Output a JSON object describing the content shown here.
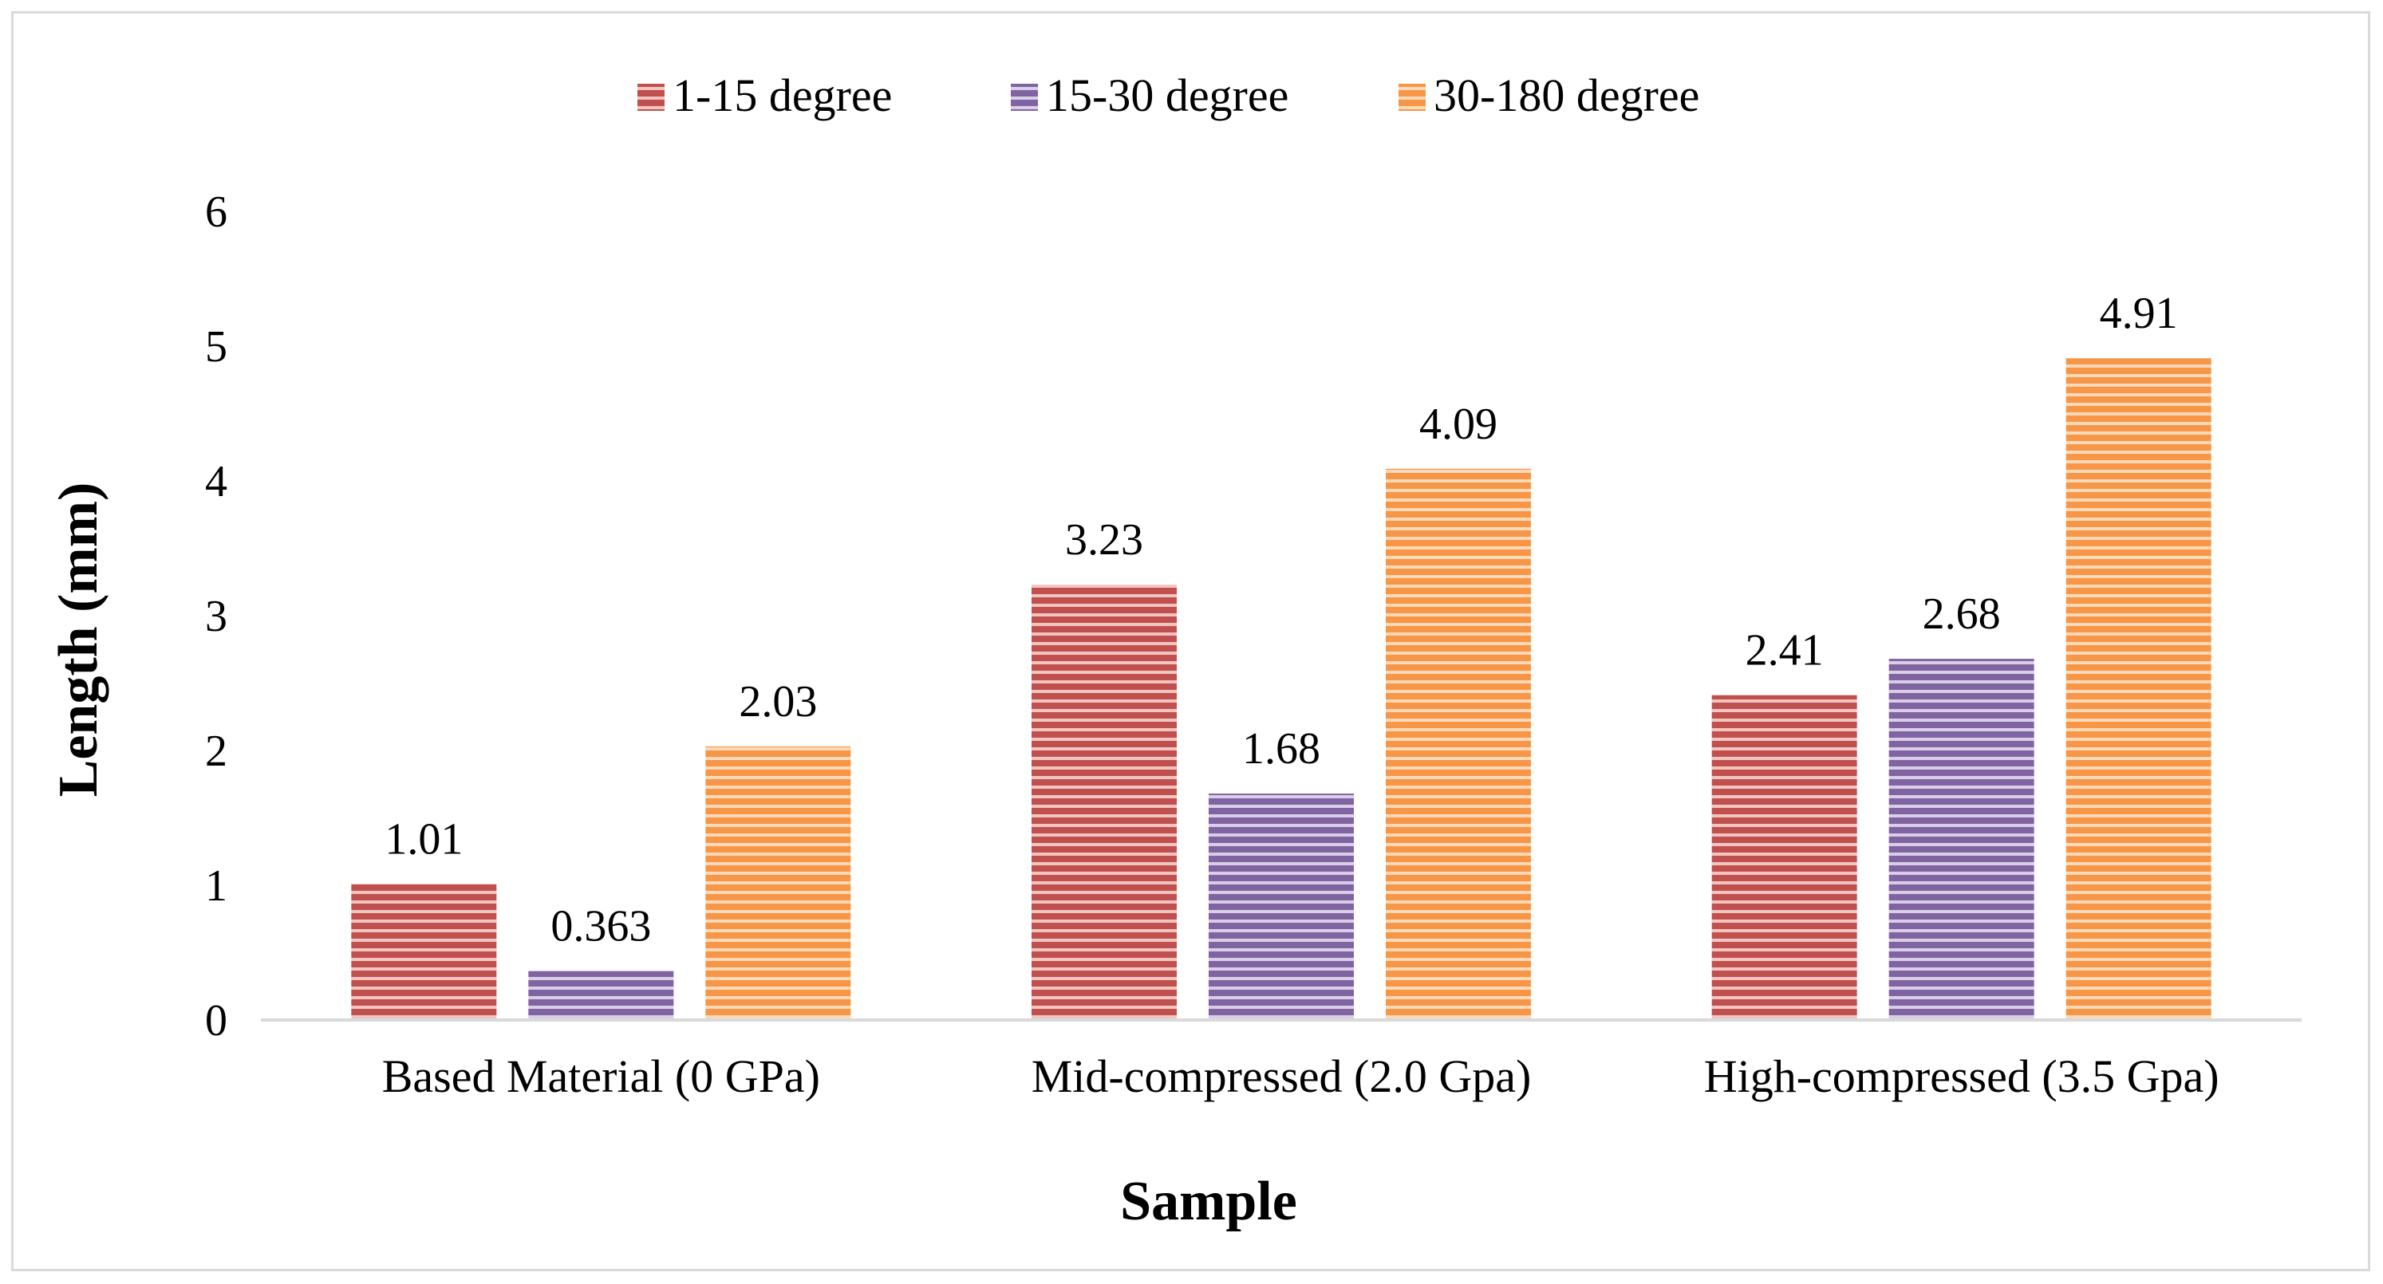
{
  "chart_data": {
    "type": "bar",
    "title": "",
    "xlabel": "Sample",
    "ylabel": "Length (mm)",
    "ylim": [
      0,
      6
    ],
    "yticks": [
      "0",
      "1",
      "2",
      "3",
      "4",
      "5",
      "6"
    ],
    "grid": false,
    "legend_position": "top-center",
    "categories": [
      "Based Material (0 GPa)",
      "Mid-compressed (2.0 Gpa)",
      "High-compressed (3.5 Gpa)"
    ],
    "series": [
      {
        "name": "1-15 degree",
        "values": [
          1.01,
          3.23,
          2.41
        ],
        "labels": [
          "1.01",
          "3.23",
          "2.41"
        ],
        "color": "#c0504d",
        "stripe": "#f2c4c2"
      },
      {
        "name": "15-30 degree",
        "values": [
          0.363,
          1.68,
          2.68
        ],
        "labels": [
          "0.363",
          "1.68",
          "2.68"
        ],
        "color": "#8064a2",
        "stripe": "#d9cde8"
      },
      {
        "name": "30-180 degree",
        "values": [
          2.03,
          4.09,
          4.91
        ],
        "labels": [
          "2.03",
          "4.09",
          "4.91"
        ],
        "color": "#f79646",
        "stripe": "#fcd9b8"
      }
    ]
  }
}
